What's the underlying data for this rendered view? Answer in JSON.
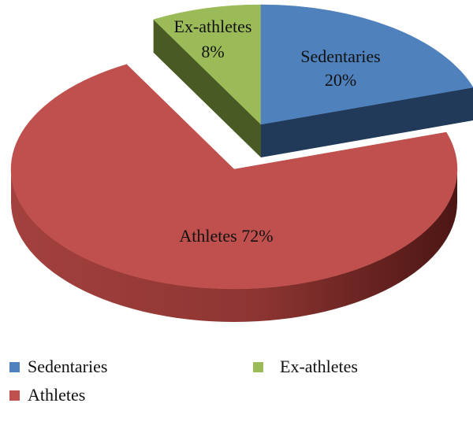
{
  "chart_data": {
    "type": "pie",
    "style": "3d-exploded",
    "slices": [
      {
        "name": "Sedentaries",
        "value": 20,
        "percent_label": "20%",
        "color": "#4f81bd",
        "side_color": "#213a59"
      },
      {
        "name": "Ex-athletes",
        "value": 8,
        "percent_label": "8%",
        "color": "#9bbb59",
        "side_color": "#4a5a24"
      },
      {
        "name": "Athletes",
        "value": 72,
        "percent_label": "Athletes 72%",
        "color": "#c0504d",
        "side_color": "#7e2a28"
      }
    ],
    "legend": {
      "placement": "bottom",
      "items": [
        {
          "label": "Sedentaries",
          "color": "#4f81bd"
        },
        {
          "label": "Ex-athletes",
          "color": "#9bbb59"
        },
        {
          "label": "Athletes",
          "color": "#c0504d"
        }
      ]
    }
  }
}
